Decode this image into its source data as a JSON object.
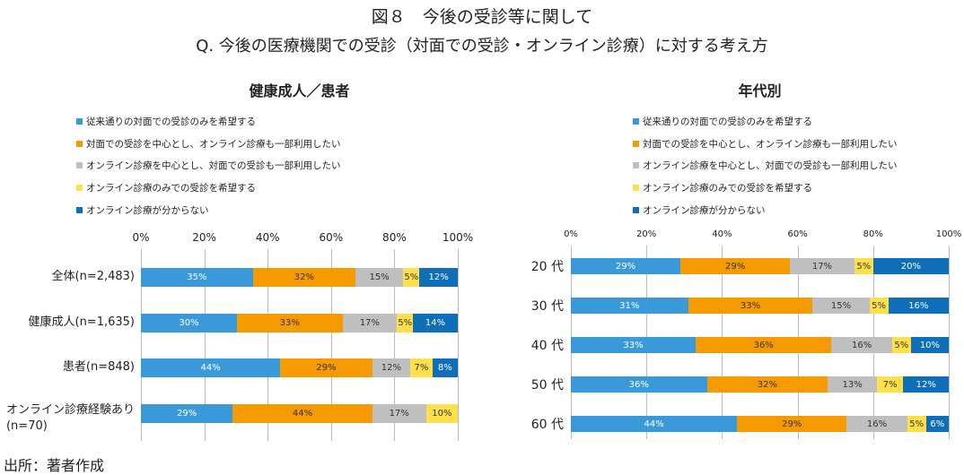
{
  "title": "図８　今後の受診等に関して",
  "subtitle": "Q.  今後の医療機関での受診（対面での受診・オンライン診療）に対する考え方",
  "source": "出所：著者作成",
  "legend": [
    "従来通りの対面での受診のみを希望する",
    "対面での受診を中心とし、オンライン診療も一部利用したい",
    "オンライン診療を中心とし、対面での受診も一部利用したい",
    "オンライン診療のみでの受診を希望する",
    "オンライン診療が分からない"
  ],
  "colors": [
    "#3a9ad9",
    "#f59a00",
    "#bfbfbf",
    "#ffe04a",
    "#0f6eb8"
  ],
  "chart_data": [
    {
      "type": "bar",
      "orientation": "horizontal",
      "stacked": true,
      "title": "健康成人／患者",
      "xlim": [
        0,
        100
      ],
      "ticks": [
        "0%",
        "20%",
        "40%",
        "60%",
        "80%",
        "100%"
      ],
      "grid": true,
      "legend_placement": "top",
      "categories": [
        "全体(n=2,483)",
        "健康成人(n=1,635)",
        "患者(n=848)",
        "オンライン診療経験あり\n(n=70)"
      ],
      "values": [
        [
          35,
          32,
          15,
          5,
          12
        ],
        [
          30,
          33,
          17,
          5,
          14
        ],
        [
          44,
          29,
          12,
          7,
          8
        ],
        [
          29,
          44,
          17,
          10,
          0
        ]
      ]
    },
    {
      "type": "bar",
      "orientation": "horizontal",
      "stacked": true,
      "title": "年代別",
      "xlim": [
        0,
        100
      ],
      "ticks": [
        "0%",
        "20%",
        "40%",
        "60%",
        "80%",
        "100%"
      ],
      "grid": true,
      "legend_placement": "top",
      "categories": [
        "20 代",
        "30 代",
        "40 代",
        "50 代",
        "60 代"
      ],
      "values": [
        [
          29,
          29,
          17,
          5,
          20
        ],
        [
          31,
          33,
          15,
          5,
          16
        ],
        [
          33,
          36,
          16,
          5,
          10
        ],
        [
          36,
          32,
          13,
          7,
          12
        ],
        [
          44,
          29,
          16,
          5,
          6
        ]
      ]
    }
  ]
}
